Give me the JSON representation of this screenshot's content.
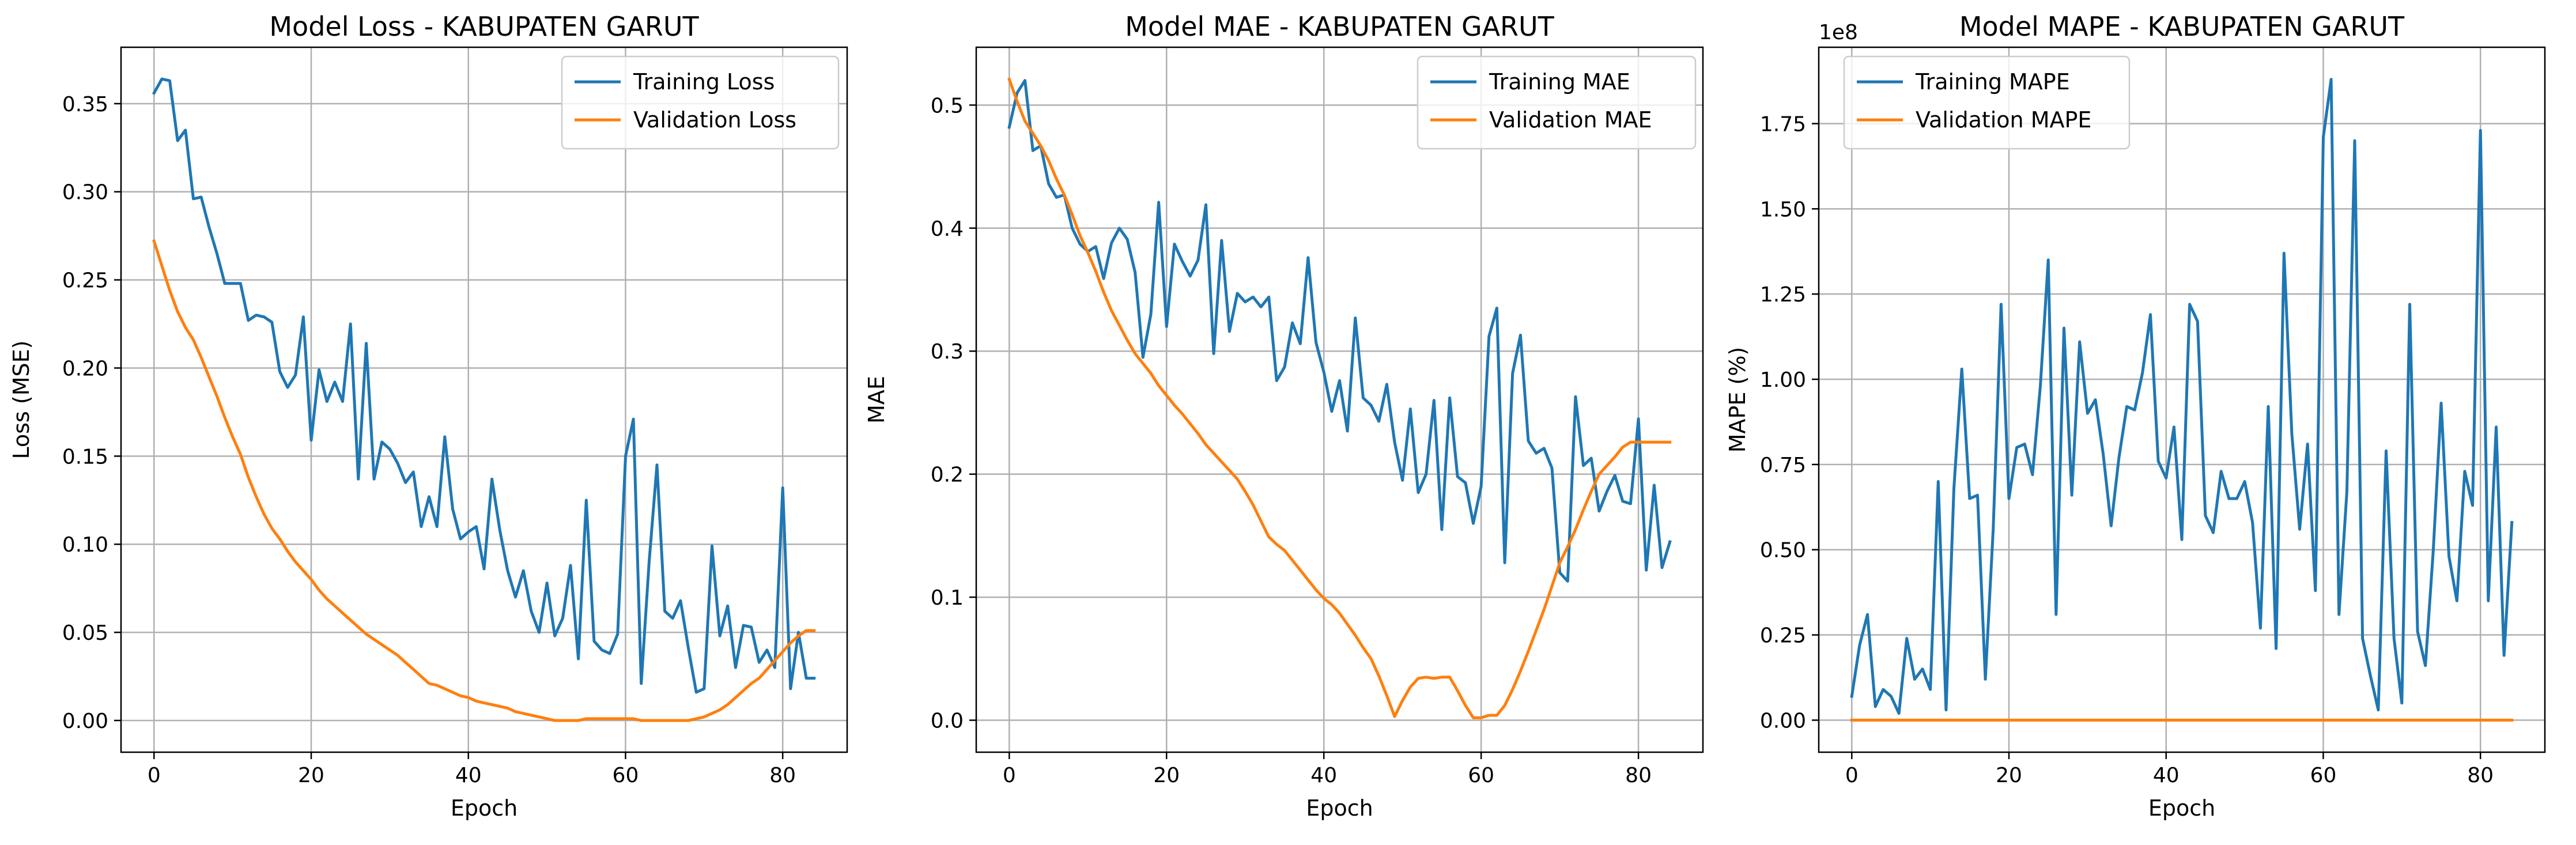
{
  "figure": {
    "colors": {
      "training": "#1f77b4",
      "validation": "#ff7f0e"
    }
  },
  "chart_data": [
    {
      "type": "line",
      "title": "Model Loss - KABUPATEN GARUT",
      "xlabel": "Epoch",
      "ylabel": "Loss (MSE)",
      "xlim": [
        -4.2,
        88.2
      ],
      "ylim": [
        -0.018,
        0.382
      ],
      "xticks": [
        0,
        20,
        40,
        60,
        80
      ],
      "yticks": [
        0.0,
        0.05,
        0.1,
        0.15,
        0.2,
        0.25,
        0.3,
        0.35
      ],
      "ytick_labels": [
        "0.00",
        "0.05",
        "0.10",
        "0.15",
        "0.20",
        "0.25",
        "0.30",
        "0.35"
      ],
      "tick_scale_label": "",
      "grid": true,
      "legend": "upper-right",
      "series": [
        {
          "name": "Training Loss",
          "color": "#1f77b4",
          "values": [
            0.356,
            0.364,
            0.363,
            0.329,
            0.335,
            0.296,
            0.297,
            0.28,
            0.265,
            0.248,
            0.248,
            0.248,
            0.227,
            0.23,
            0.229,
            0.226,
            0.198,
            0.189,
            0.196,
            0.229,
            0.159,
            0.199,
            0.181,
            0.192,
            0.181,
            0.225,
            0.137,
            0.214,
            0.137,
            0.158,
            0.154,
            0.146,
            0.135,
            0.141,
            0.11,
            0.127,
            0.11,
            0.161,
            0.12,
            0.103,
            0.107,
            0.11,
            0.086,
            0.137,
            0.108,
            0.085,
            0.07,
            0.085,
            0.062,
            0.05,
            0.078,
            0.048,
            0.058,
            0.088,
            0.035,
            0.125,
            0.045,
            0.04,
            0.038,
            0.049,
            0.15,
            0.171,
            0.021,
            0.09,
            0.145,
            0.062,
            0.058,
            0.068,
            0.041,
            0.016,
            0.018,
            0.099,
            0.048,
            0.065,
            0.03,
            0.054,
            0.053,
            0.033,
            0.04,
            0.03,
            0.132,
            0.018,
            0.05,
            0.024,
            0.024
          ]
        },
        {
          "name": "Validation Loss",
          "color": "#ff7f0e",
          "values": [
            0.272,
            0.258,
            0.244,
            0.232,
            0.223,
            0.216,
            0.206,
            0.195,
            0.184,
            0.172,
            0.161,
            0.151,
            0.138,
            0.127,
            0.117,
            0.109,
            0.103,
            0.096,
            0.09,
            0.085,
            0.08,
            0.074,
            0.069,
            0.065,
            0.061,
            0.057,
            0.053,
            0.049,
            0.046,
            0.043,
            0.04,
            0.037,
            0.033,
            0.029,
            0.025,
            0.021,
            0.02,
            0.018,
            0.016,
            0.014,
            0.013,
            0.011,
            0.01,
            0.009,
            0.008,
            0.007,
            0.005,
            0.004,
            0.003,
            0.002,
            0.001,
            0.0,
            0.0,
            0.0,
            0.0,
            0.001,
            0.001,
            0.001,
            0.001,
            0.001,
            0.001,
            0.001,
            0.0,
            0.0,
            0.0,
            0.0,
            0.0,
            0.0,
            0.0,
            0.001,
            0.002,
            0.004,
            0.006,
            0.009,
            0.013,
            0.017,
            0.021,
            0.024,
            0.029,
            0.034,
            0.039,
            0.044,
            0.048,
            0.051,
            0.051
          ]
        }
      ]
    },
    {
      "type": "line",
      "title": "Model MAE - KABUPATEN GARUT",
      "xlabel": "Epoch",
      "ylabel": "MAE",
      "xlim": [
        -4.2,
        88.2
      ],
      "ylim": [
        -0.026,
        0.547
      ],
      "xticks": [
        0,
        20,
        40,
        60,
        80
      ],
      "yticks": [
        0.0,
        0.1,
        0.2,
        0.3,
        0.4,
        0.5
      ],
      "ytick_labels": [
        "0.0",
        "0.1",
        "0.2",
        "0.3",
        "0.4",
        "0.5"
      ],
      "tick_scale_label": "",
      "grid": true,
      "legend": "upper-right",
      "series": [
        {
          "name": "Training MAE",
          "color": "#1f77b4",
          "values": [
            0.482,
            0.51,
            0.52,
            0.463,
            0.467,
            0.436,
            0.425,
            0.427,
            0.4,
            0.387,
            0.381,
            0.385,
            0.359,
            0.388,
            0.4,
            0.391,
            0.364,
            0.295,
            0.33,
            0.421,
            0.32,
            0.387,
            0.373,
            0.361,
            0.374,
            0.419,
            0.298,
            0.39,
            0.316,
            0.347,
            0.34,
            0.344,
            0.336,
            0.344,
            0.276,
            0.287,
            0.323,
            0.306,
            0.376,
            0.307,
            0.283,
            0.251,
            0.276,
            0.235,
            0.327,
            0.262,
            0.256,
            0.243,
            0.273,
            0.226,
            0.195,
            0.253,
            0.185,
            0.2,
            0.26,
            0.155,
            0.262,
            0.198,
            0.193,
            0.16,
            0.19,
            0.312,
            0.335,
            0.128,
            0.282,
            0.313,
            0.227,
            0.217,
            0.221,
            0.205,
            0.12,
            0.113,
            0.263,
            0.207,
            0.213,
            0.17,
            0.186,
            0.199,
            0.178,
            0.176,
            0.245,
            0.122,
            0.191,
            0.124,
            0.145
          ]
        },
        {
          "name": "Validation MAE",
          "color": "#ff7f0e",
          "values": [
            0.521,
            0.503,
            0.487,
            0.477,
            0.467,
            0.455,
            0.44,
            0.427,
            0.411,
            0.394,
            0.38,
            0.365,
            0.348,
            0.333,
            0.321,
            0.309,
            0.298,
            0.29,
            0.282,
            0.272,
            0.264,
            0.256,
            0.249,
            0.241,
            0.233,
            0.224,
            0.217,
            0.21,
            0.203,
            0.196,
            0.186,
            0.175,
            0.162,
            0.149,
            0.143,
            0.138,
            0.13,
            0.122,
            0.114,
            0.106,
            0.099,
            0.094,
            0.087,
            0.078,
            0.069,
            0.059,
            0.05,
            0.036,
            0.02,
            0.003,
            0.016,
            0.027,
            0.034,
            0.035,
            0.034,
            0.035,
            0.035,
            0.024,
            0.012,
            0.002,
            0.002,
            0.004,
            0.004,
            0.012,
            0.025,
            0.04,
            0.056,
            0.073,
            0.09,
            0.109,
            0.128,
            0.141,
            0.155,
            0.171,
            0.186,
            0.2,
            0.207,
            0.214,
            0.222,
            0.226,
            0.226,
            0.226,
            0.226,
            0.226,
            0.226
          ]
        }
      ]
    },
    {
      "type": "line",
      "title": "Model MAPE - KABUPATEN GARUT",
      "xlabel": "Epoch",
      "ylabel": "MAPE (%)",
      "xlim": [
        -4.2,
        88.2
      ],
      "ylim": [
        -9400000,
        197400000
      ],
      "xticks": [
        0,
        20,
        40,
        60,
        80
      ],
      "yticks": [
        0,
        25000000,
        50000000,
        75000000,
        100000000,
        125000000,
        150000000,
        175000000
      ],
      "ytick_labels": [
        "0.00",
        "0.25",
        "0.50",
        "0.75",
        "1.00",
        "1.25",
        "1.50",
        "1.75"
      ],
      "tick_scale_label": "1e8",
      "grid": true,
      "legend": "upper-left",
      "series": [
        {
          "name": "Training MAPE",
          "color": "#1f77b4",
          "values": [
            7000000,
            22000000,
            31000000,
            4000000,
            9000000,
            7000000,
            2000000,
            24000000,
            12000000,
            15000000,
            9000000,
            70000000,
            3000000,
            68000000,
            103000000,
            65000000,
            66000000,
            12000000,
            56000000,
            122000000,
            65000000,
            80000000,
            81000000,
            72000000,
            98000000,
            135000000,
            31000000,
            115000000,
            66000000,
            111000000,
            90000000,
            94000000,
            78000000,
            57000000,
            77000000,
            92000000,
            91000000,
            102000000,
            119000000,
            76000000,
            71000000,
            86000000,
            53000000,
            122000000,
            117000000,
            60000000,
            55000000,
            73000000,
            65000000,
            65000000,
            70000000,
            58000000,
            27000000,
            92000000,
            21000000,
            137000000,
            84000000,
            56000000,
            81000000,
            38000000,
            171000000,
            188000000,
            31000000,
            67000000,
            170000000,
            24000000,
            13000000,
            3000000,
            79000000,
            24000000,
            5000000,
            122000000,
            26000000,
            16000000,
            50000000,
            93000000,
            48000000,
            35000000,
            73000000,
            63000000,
            173000000,
            35000000,
            86000000,
            19000000,
            58000000
          ]
        },
        {
          "name": "Validation MAPE",
          "color": "#ff7f0e",
          "values": [
            0,
            0,
            0,
            0,
            0,
            0,
            0,
            0,
            0,
            0,
            0,
            0,
            0,
            0,
            0,
            0,
            0,
            0,
            0,
            0,
            0,
            0,
            0,
            0,
            0,
            0,
            0,
            0,
            0,
            0,
            0,
            0,
            0,
            0,
            0,
            0,
            0,
            0,
            0,
            0,
            0,
            0,
            0,
            0,
            0,
            0,
            0,
            0,
            0,
            0,
            0,
            0,
            0,
            0,
            0,
            0,
            0,
            0,
            0,
            0,
            0,
            0,
            0,
            0,
            0,
            0,
            0,
            0,
            0,
            0,
            0,
            0,
            0,
            0,
            0,
            0,
            0,
            0,
            0,
            0,
            0,
            0,
            0,
            0,
            0
          ]
        }
      ]
    }
  ]
}
